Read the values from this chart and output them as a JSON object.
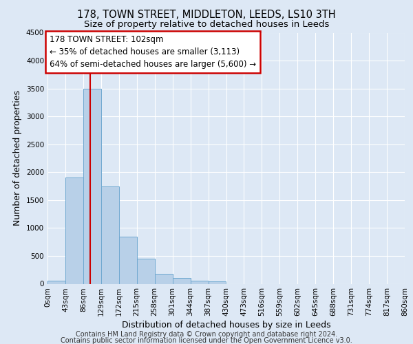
{
  "title": "178, TOWN STREET, MIDDLETON, LEEDS, LS10 3TH",
  "subtitle": "Size of property relative to detached houses in Leeds",
  "xlabel": "Distribution of detached houses by size in Leeds",
  "ylabel": "Number of detached properties",
  "bar_values": [
    50,
    1900,
    3500,
    1750,
    850,
    450,
    175,
    100,
    60,
    45,
    0,
    0,
    0,
    0,
    0,
    0,
    0,
    0,
    0,
    0
  ],
  "bin_edges": [
    0,
    43,
    86,
    129,
    172,
    215,
    258,
    301,
    344,
    387,
    430,
    473,
    516,
    559,
    602,
    645,
    688,
    731,
    774,
    817,
    860
  ],
  "tick_labels": [
    "0sqm",
    "43sqm",
    "86sqm",
    "129sqm",
    "172sqm",
    "215sqm",
    "258sqm",
    "301sqm",
    "344sqm",
    "387sqm",
    "430sqm",
    "473sqm",
    "516sqm",
    "559sqm",
    "602sqm",
    "645sqm",
    "688sqm",
    "731sqm",
    "774sqm",
    "817sqm",
    "860sqm"
  ],
  "bar_color": "#b8d0e8",
  "bar_edge_color": "#6fa8d0",
  "vline_x": 102,
  "vline_color": "#cc0000",
  "ylim": [
    0,
    4500
  ],
  "yticks": [
    0,
    500,
    1000,
    1500,
    2000,
    2500,
    3000,
    3500,
    4000,
    4500
  ],
  "annotation_title": "178 TOWN STREET: 102sqm",
  "annotation_line1": "← 35% of detached houses are smaller (3,113)",
  "annotation_line2": "64% of semi-detached houses are larger (5,600) →",
  "annotation_box_color": "#ffffff",
  "annotation_box_edge": "#cc0000",
  "footer1": "Contains HM Land Registry data © Crown copyright and database right 2024.",
  "footer2": "Contains public sector information licensed under the Open Government Licence v3.0.",
  "bg_color": "#dde8f5",
  "grid_color": "#ffffff",
  "title_fontsize": 10.5,
  "subtitle_fontsize": 9.5,
  "axis_label_fontsize": 9,
  "tick_fontsize": 7.5,
  "footer_fontsize": 7,
  "annot_fontsize": 8.5
}
